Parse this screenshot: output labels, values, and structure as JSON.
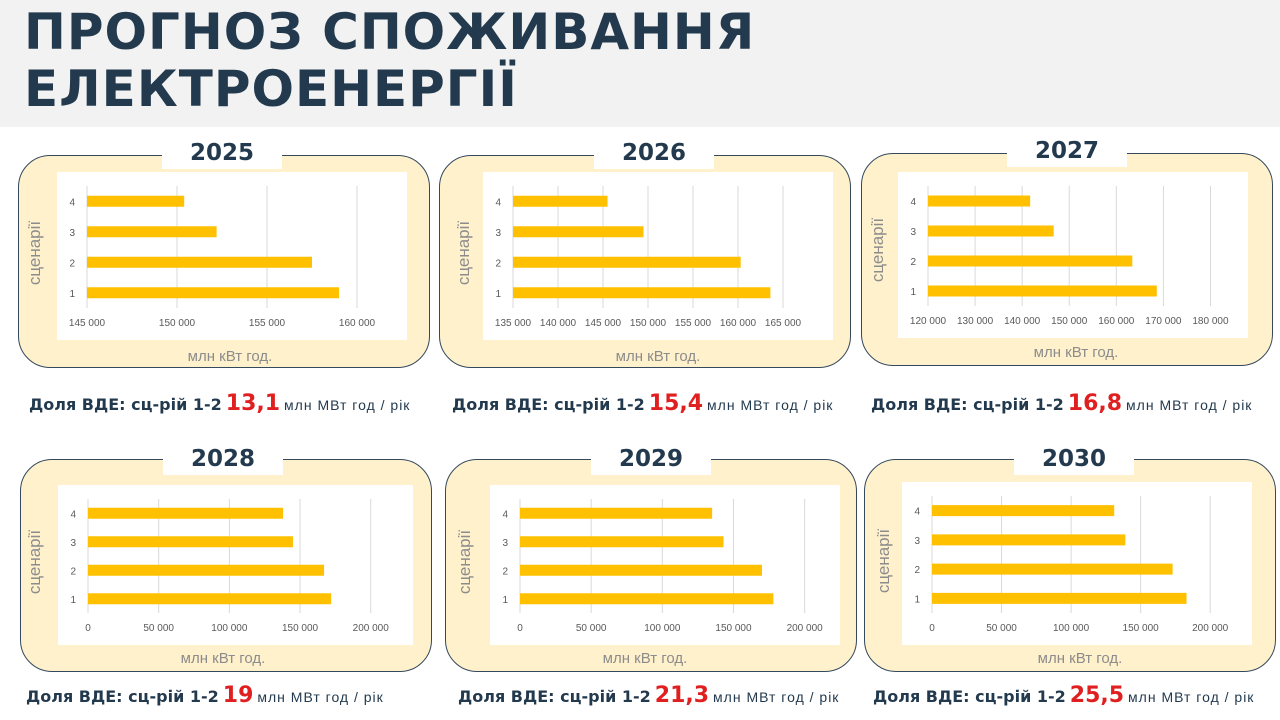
{
  "title": {
    "line1": "ПРОГНОЗ СПОЖИВАННЯ",
    "line2": "ЕЛЕКТРОЕНЕРГІЇ"
  },
  "colors": {
    "bar": "#ffc000",
    "panel_bg": "#fff1cc",
    "title": "#233a4e",
    "accent_value": "#e02020"
  },
  "vde_label": "Доля ВДЕ: сц-рій 1-2",
  "vde_unit": "млн МВт год / рік",
  "chart_data": [
    {
      "type": "bar",
      "orientation": "horizontal",
      "title": "2025",
      "categories": [
        "1",
        "2",
        "3",
        "4"
      ],
      "values": [
        159000,
        157500,
        152200,
        150400
      ],
      "xlim": [
        145000,
        162000
      ],
      "xticks": [
        "145 000",
        "150 000",
        "155 000",
        "160 000"
      ],
      "xtick_values": [
        145000,
        150000,
        155000,
        160000
      ],
      "xlabel": "млн кВт год.",
      "ylabel": "сценарії",
      "vde_value": "13,1"
    },
    {
      "type": "bar",
      "orientation": "horizontal",
      "title": "2026",
      "categories": [
        "1",
        "2",
        "3",
        "4"
      ],
      "values": [
        163600,
        160300,
        149500,
        145500
      ],
      "xlim": [
        135000,
        169000
      ],
      "xticks": [
        "135 000",
        "140 000",
        "145 000",
        "150 000",
        "155 000",
        "160 000",
        "165 000"
      ],
      "xtick_values": [
        135000,
        140000,
        145000,
        150000,
        155000,
        160000,
        165000
      ],
      "xlabel": "млн кВт год.",
      "ylabel": "сценарії",
      "vde_value": "15,4"
    },
    {
      "type": "bar",
      "orientation": "horizontal",
      "title": "2027",
      "categories": [
        "1",
        "2",
        "3",
        "4"
      ],
      "values": [
        168600,
        163400,
        146700,
        141700
      ],
      "xlim": [
        120000,
        185000
      ],
      "xticks": [
        "120 000",
        "130 000",
        "140 000",
        "150 000",
        "160 000",
        "170 000",
        "180 000"
      ],
      "xtick_values": [
        120000,
        130000,
        140000,
        150000,
        160000,
        170000,
        180000
      ],
      "xlabel": "млн кВт год.",
      "ylabel": "сценарії",
      "vde_value": "16,8"
    },
    {
      "type": "bar",
      "orientation": "horizontal",
      "title": "2028",
      "categories": [
        "1",
        "2",
        "3",
        "4"
      ],
      "values": [
        172000,
        167000,
        145000,
        138000
      ],
      "xlim": [
        0,
        220000
      ],
      "xticks": [
        "0",
        "50 000",
        "100 000",
        "150 000",
        "200 000"
      ],
      "xtick_values": [
        0,
        50000,
        100000,
        150000,
        200000
      ],
      "xlabel": "млн кВт год.",
      "ylabel": "сценарії",
      "vde_value": "19"
    },
    {
      "type": "bar",
      "orientation": "horizontal",
      "title": "2029",
      "categories": [
        "1",
        "2",
        "3",
        "4"
      ],
      "values": [
        178000,
        170000,
        143000,
        135000
      ],
      "xlim": [
        0,
        215000
      ],
      "xticks": [
        "0",
        "50 000",
        "100 000",
        "150 000",
        "200 000"
      ],
      "xtick_values": [
        0,
        50000,
        100000,
        150000,
        200000
      ],
      "xlabel": "млн кВт год.",
      "ylabel": "сценарії",
      "vde_value": "21,3"
    },
    {
      "type": "bar",
      "orientation": "horizontal",
      "title": "2030",
      "categories": [
        "1",
        "2",
        "3",
        "4"
      ],
      "values": [
        183000,
        173000,
        139000,
        131000
      ],
      "xlim": [
        0,
        220000
      ],
      "xticks": [
        "0",
        "50 000",
        "100 000",
        "150 000",
        "200 000"
      ],
      "xtick_values": [
        0,
        50000,
        100000,
        150000,
        200000
      ],
      "xlabel": "млн кВт год.",
      "ylabel": "сценарії",
      "vde_value": "25,5"
    }
  ]
}
